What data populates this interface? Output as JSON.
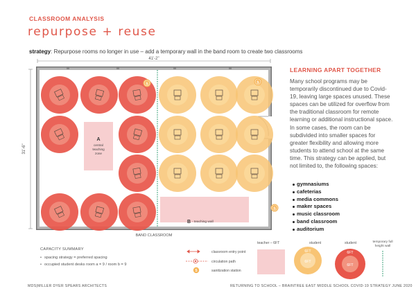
{
  "header": {
    "kicker": "CLASSROOM ANALYSIS",
    "title": "repurpose + reuse",
    "strategy_label": "strategy",
    "strategy_text": ": Repurpose rooms no longer in use – add a temporary wall in the band room to create two classrooms"
  },
  "plan": {
    "dimension_width": "41'-2\"",
    "dimension_height": "31'-6\"",
    "zone_a_letter": "A",
    "zone_a_label_line1": "central",
    "zone_a_label_line2": "teaching",
    "zone_a_label_line3": "zone",
    "zone_b_letter": "B",
    "zone_b_label": "- teaching wall",
    "room_label": "BAND CLASSROOM",
    "sanitization_letter": "S"
  },
  "sidebar": {
    "heading": "LEARNING APART TOGETHER",
    "body": "Many school programs may be temporarily discontinued due to Covid-19, leaving large spaces unused. These spaces can be utilized for overflow from the traditional classroom for remote learning or additional instructional space. In some cases, the room can be subdivided into smaller spaces for greater flexibility and allowing more students to attend school at the same time. This strategy can be applied, but not limited to, the following spaces:",
    "spaces": [
      "gymnasiums",
      "cafeterias",
      "media commons",
      "maker spaces",
      "music classroom",
      "band classroom",
      "auditorium"
    ]
  },
  "capacity": {
    "heading": "CAPACITY SUMMARY",
    "items": [
      "spacing strategy = preferred spacing",
      "occupied student desks room a = 9  /  room b = 9"
    ]
  },
  "legend": {
    "entry_point": "classroom entry point",
    "circulation": "circulation path",
    "sanitization": "sanitization station",
    "teacher": "teacher – 6FT",
    "student": "student",
    "student_ft_1": "6FT",
    "student_ft_2": "6FT",
    "student_b": "student",
    "student_b_ft_1": "6FT",
    "student_b_ft_2": "6FT",
    "temp_wall_line1": "temporary full",
    "temp_wall_line2": "height wall"
  },
  "footer": {
    "left": "MDS|MILLER DYER SPEARS ARCHITECTS",
    "right": "RETURNING TO SCHOOL – BRAINTREE EAST MIDDLE SCHOOL COVID-19 STRATEGY JUNE 2020"
  },
  "colors": {
    "accent": "#e0574a",
    "red_circle": "#e8564a",
    "yellow_circle": "#f8c474",
    "teacher_zone": "#f7cfd0",
    "temp_wall": "#6ab89a"
  }
}
